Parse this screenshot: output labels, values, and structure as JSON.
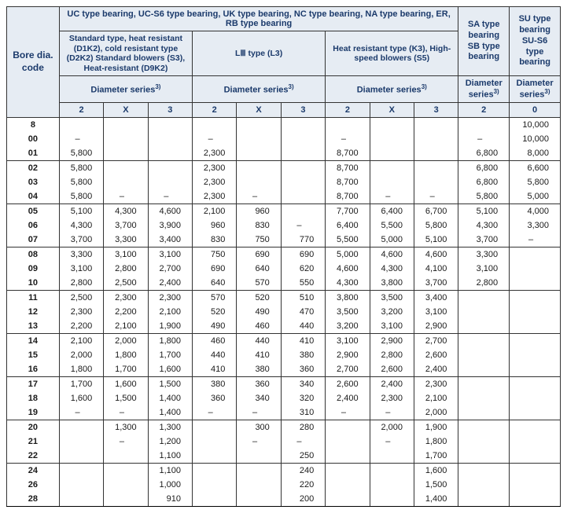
{
  "headers": {
    "bore": "Bore dia. code",
    "mainTop": "UC type bearing, UC-S6 type bearing, UK type bearing, NC type bearing, NA type bearing, ER, RB type bearing",
    "group1": "Standard type, heat resistant (D1K2), cold resistant type (D2K2) Standard blowers (S3), Heat-resistant (D9K2)",
    "group2": "LⅢ type (L3)",
    "group3": "Heat resistant type (K3), High-speed blowers (S5)",
    "sa": "SA type bearing SB type bearing",
    "su": "SU type bearing SU-S6 type bearing",
    "diam": "Diameter series",
    "sup": "3)",
    "cols": {
      "c2": "2",
      "cX": "X",
      "c3": "3",
      "c0": "0"
    }
  },
  "rows": [
    {
      "b": "8",
      "sep": true,
      "a2": "",
      "aX": "",
      "a3": "",
      "l2": "",
      "lX": "",
      "l3": "",
      "k2": "",
      "kX": "",
      "k3": "",
      "sa": "",
      "su": "10,000"
    },
    {
      "b": "00",
      "sep": false,
      "a2": "–",
      "aX": "",
      "a3": "",
      "l2": "–",
      "lX": "",
      "l3": "",
      "k2": "–",
      "kX": "",
      "k3": "",
      "sa": "–",
      "su": "10,000"
    },
    {
      "b": "01",
      "sep": false,
      "a2": "5,800",
      "aX": "",
      "a3": "",
      "l2": "2,300",
      "lX": "",
      "l3": "",
      "k2": "8,700",
      "kX": "",
      "k3": "",
      "sa": "6,800",
      "su": "8,000"
    },
    {
      "b": "02",
      "sep": true,
      "a2": "5,800",
      "aX": "",
      "a3": "",
      "l2": "2,300",
      "lX": "",
      "l3": "",
      "k2": "8,700",
      "kX": "",
      "k3": "",
      "sa": "6,800",
      "su": "6,600"
    },
    {
      "b": "03",
      "sep": false,
      "a2": "5,800",
      "aX": "",
      "a3": "",
      "l2": "2,300",
      "lX": "",
      "l3": "",
      "k2": "8,700",
      "kX": "",
      "k3": "",
      "sa": "6,800",
      "su": "5,800"
    },
    {
      "b": "04",
      "sep": false,
      "a2": "5,800",
      "aX": "–",
      "a3": "–",
      "l2": "2,300",
      "lX": "–",
      "l3": "",
      "k2": "8,700",
      "kX": "–",
      "k3": "–",
      "sa": "5,800",
      "su": "5,000"
    },
    {
      "b": "05",
      "sep": true,
      "a2": "5,100",
      "aX": "4,300",
      "a3": "4,600",
      "l2": "2,100",
      "lX": "960",
      "l3": "",
      "k2": "7,700",
      "kX": "6,400",
      "k3": "6,700",
      "sa": "5,100",
      "su": "4,000"
    },
    {
      "b": "06",
      "sep": false,
      "a2": "4,300",
      "aX": "3,700",
      "a3": "3,900",
      "l2": "960",
      "lX": "830",
      "l3": "–",
      "k2": "6,400",
      "kX": "5,500",
      "k3": "5,800",
      "sa": "4,300",
      "su": "3,300"
    },
    {
      "b": "07",
      "sep": false,
      "a2": "3,700",
      "aX": "3,300",
      "a3": "3,400",
      "l2": "830",
      "lX": "750",
      "l3": "770",
      "k2": "5,500",
      "kX": "5,000",
      "k3": "5,100",
      "sa": "3,700",
      "su": "–"
    },
    {
      "b": "08",
      "sep": true,
      "a2": "3,300",
      "aX": "3,100",
      "a3": "3,100",
      "l2": "750",
      "lX": "690",
      "l3": "690",
      "k2": "5,000",
      "kX": "4,600",
      "k3": "4,600",
      "sa": "3,300",
      "su": ""
    },
    {
      "b": "09",
      "sep": false,
      "a2": "3,100",
      "aX": "2,800",
      "a3": "2,700",
      "l2": "690",
      "lX": "640",
      "l3": "620",
      "k2": "4,600",
      "kX": "4,300",
      "k3": "4,100",
      "sa": "3,100",
      "su": ""
    },
    {
      "b": "10",
      "sep": false,
      "a2": "2,800",
      "aX": "2,500",
      "a3": "2,400",
      "l2": "640",
      "lX": "570",
      "l3": "550",
      "k2": "4,300",
      "kX": "3,800",
      "k3": "3,700",
      "sa": "2,800",
      "su": ""
    },
    {
      "b": "11",
      "sep": true,
      "a2": "2,500",
      "aX": "2,300",
      "a3": "2,300",
      "l2": "570",
      "lX": "520",
      "l3": "510",
      "k2": "3,800",
      "kX": "3,500",
      "k3": "3,400",
      "sa": "",
      "su": ""
    },
    {
      "b": "12",
      "sep": false,
      "a2": "2,300",
      "aX": "2,200",
      "a3": "2,100",
      "l2": "520",
      "lX": "490",
      "l3": "470",
      "k2": "3,500",
      "kX": "3,200",
      "k3": "3,100",
      "sa": "",
      "su": ""
    },
    {
      "b": "13",
      "sep": false,
      "a2": "2,200",
      "aX": "2,100",
      "a3": "1,900",
      "l2": "490",
      "lX": "460",
      "l3": "440",
      "k2": "3,200",
      "kX": "3,100",
      "k3": "2,900",
      "sa": "",
      "su": ""
    },
    {
      "b": "14",
      "sep": true,
      "a2": "2,100",
      "aX": "2,000",
      "a3": "1,800",
      "l2": "460",
      "lX": "440",
      "l3": "410",
      "k2": "3,100",
      "kX": "2,900",
      "k3": "2,700",
      "sa": "",
      "su": ""
    },
    {
      "b": "15",
      "sep": false,
      "a2": "2,000",
      "aX": "1,800",
      "a3": "1,700",
      "l2": "440",
      "lX": "410",
      "l3": "380",
      "k2": "2,900",
      "kX": "2,800",
      "k3": "2,600",
      "sa": "",
      "su": ""
    },
    {
      "b": "16",
      "sep": false,
      "a2": "1,800",
      "aX": "1,700",
      "a3": "1,600",
      "l2": "410",
      "lX": "380",
      "l3": "360",
      "k2": "2,700",
      "kX": "2,600",
      "k3": "2,400",
      "sa": "",
      "su": ""
    },
    {
      "b": "17",
      "sep": true,
      "a2": "1,700",
      "aX": "1,600",
      "a3": "1,500",
      "l2": "380",
      "lX": "360",
      "l3": "340",
      "k2": "2,600",
      "kX": "2,400",
      "k3": "2,300",
      "sa": "",
      "su": ""
    },
    {
      "b": "18",
      "sep": false,
      "a2": "1,600",
      "aX": "1,500",
      "a3": "1,400",
      "l2": "360",
      "lX": "340",
      "l3": "320",
      "k2": "2,400",
      "kX": "2,300",
      "k3": "2,100",
      "sa": "",
      "su": ""
    },
    {
      "b": "19",
      "sep": false,
      "a2": "–",
      "aX": "–",
      "a3": "1,400",
      "l2": "–",
      "lX": "–",
      "l3": "310",
      "k2": "–",
      "kX": "–",
      "k3": "2,000",
      "sa": "",
      "su": ""
    },
    {
      "b": "20",
      "sep": true,
      "a2": "",
      "aX": "1,300",
      "a3": "1,300",
      "l2": "",
      "lX": "300",
      "l3": "280",
      "k2": "",
      "kX": "2,000",
      "k3": "1,900",
      "sa": "",
      "su": ""
    },
    {
      "b": "21",
      "sep": false,
      "a2": "",
      "aX": "–",
      "a3": "1,200",
      "l2": "",
      "lX": "–",
      "l3": "–",
      "k2": "",
      "kX": "–",
      "k3": "1,800",
      "sa": "",
      "su": ""
    },
    {
      "b": "22",
      "sep": false,
      "a2": "",
      "aX": "",
      "a3": "1,100",
      "l2": "",
      "lX": "",
      "l3": "250",
      "k2": "",
      "kX": "",
      "k3": "1,700",
      "sa": "",
      "su": ""
    },
    {
      "b": "24",
      "sep": true,
      "a2": "",
      "aX": "",
      "a3": "1,100",
      "l2": "",
      "lX": "",
      "l3": "240",
      "k2": "",
      "kX": "",
      "k3": "1,600",
      "sa": "",
      "su": ""
    },
    {
      "b": "26",
      "sep": false,
      "a2": "",
      "aX": "",
      "a3": "1,000",
      "l2": "",
      "lX": "",
      "l3": "220",
      "k2": "",
      "kX": "",
      "k3": "1,500",
      "sa": "",
      "su": ""
    },
    {
      "b": "28",
      "sep": false,
      "a2": "",
      "aX": "",
      "a3": "910",
      "l2": "",
      "lX": "",
      "l3": "200",
      "k2": "",
      "kX": "",
      "k3": "1,400",
      "sa": "",
      "su": ""
    }
  ]
}
